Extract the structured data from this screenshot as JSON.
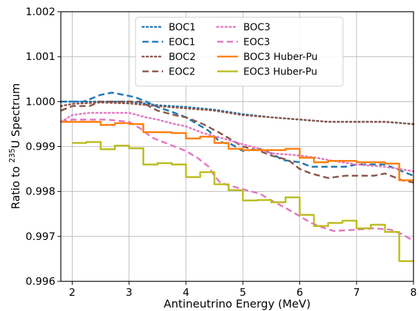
{
  "chart_data": {
    "type": "line",
    "title": "",
    "xlabel": "Antineutrino Energy (MeV)",
    "ylabel_parts": {
      "pre": "Ratio to ",
      "sup": "235",
      "post": "U Spectrum"
    },
    "xlim": [
      1.8,
      8.0
    ],
    "ylim": [
      0.996,
      1.002
    ],
    "xticks": [
      2,
      3,
      4,
      5,
      6,
      7,
      8
    ],
    "yticks": [
      0.996,
      0.997,
      0.998,
      0.999,
      1.0,
      1.001,
      1.002
    ],
    "ytick_labels": [
      "0.996",
      "0.997",
      "0.998",
      "0.999",
      "1.000",
      "1.001",
      "1.002"
    ],
    "grid": true,
    "legend": {
      "placement": "upper center",
      "columns": 2
    },
    "series": [
      {
        "name": "BOC1",
        "color": "#1f77b4",
        "style": "dotted",
        "x": [
          1.8,
          2.0,
          2.5,
          3.0,
          3.5,
          4.0,
          4.5,
          5.0,
          5.5,
          6.0,
          6.5,
          7.0,
          7.5,
          8.0
        ],
        "y": [
          1.0,
          1.0,
          1.0,
          1.0,
          0.99992,
          0.99988,
          0.99982,
          0.99972,
          0.99965,
          0.9996,
          0.99955,
          0.99955,
          0.99955,
          0.9995
        ]
      },
      {
        "name": "EOC1",
        "color": "#1f77b4",
        "style": "dashed",
        "x": [
          1.8,
          2.2,
          2.5,
          2.7,
          2.9,
          3.1,
          3.3,
          3.5,
          3.8,
          4.0,
          4.2,
          4.4,
          4.6,
          4.8,
          5.0,
          5.3,
          5.5,
          5.7,
          6.0,
          6.2,
          6.5,
          6.8,
          7.0,
          7.5,
          7.8,
          8.0
        ],
        "y": [
          1.0,
          1.0,
          1.00015,
          1.0002,
          1.00015,
          1.0001,
          1.0,
          0.99988,
          0.99975,
          0.99965,
          0.9995,
          0.99935,
          0.9991,
          0.99905,
          0.9989,
          0.99895,
          0.99885,
          0.9987,
          0.99865,
          0.99855,
          0.99855,
          0.99855,
          0.9986,
          0.9986,
          0.99845,
          0.99835
        ]
      },
      {
        "name": "BOC2",
        "color": "#8c564b",
        "style": "dotted",
        "x": [
          1.8,
          2.0,
          2.5,
          3.0,
          3.5,
          4.0,
          4.5,
          5.0,
          5.5,
          6.0,
          6.5,
          7.0,
          7.5,
          8.0
        ],
        "y": [
          0.9999,
          0.99995,
          0.99998,
          0.99996,
          0.9999,
          0.99985,
          0.9998,
          0.9997,
          0.99965,
          0.9996,
          0.99955,
          0.99955,
          0.99955,
          0.9995
        ]
      },
      {
        "name": "EOC2",
        "color": "#8c564b",
        "style": "dashed",
        "x": [
          1.8,
          2.0,
          2.3,
          2.5,
          3.0,
          3.2,
          3.5,
          3.8,
          4.0,
          4.3,
          4.6,
          4.8,
          5.0,
          5.3,
          5.5,
          5.8,
          6.0,
          6.2,
          6.5,
          6.8,
          7.0,
          7.3,
          7.5,
          7.8,
          8.0
        ],
        "y": [
          0.9998,
          0.9999,
          0.9999,
          1.0,
          1.0,
          1.0,
          0.9998,
          0.9997,
          0.99965,
          0.9995,
          0.9993,
          0.99915,
          0.999,
          0.9989,
          0.9988,
          0.9987,
          0.9985,
          0.9984,
          0.9983,
          0.99835,
          0.99835,
          0.99835,
          0.9984,
          0.99825,
          0.9982
        ]
      },
      {
        "name": "BOC3",
        "color": "#e377c2",
        "style": "dotted",
        "x": [
          1.8,
          2.0,
          2.3,
          2.5,
          3.0,
          3.3,
          3.5,
          3.8,
          4.0,
          4.3,
          4.6,
          5.0,
          5.3,
          5.5,
          6.0,
          6.3,
          6.5,
          7.0,
          7.5,
          8.0
        ],
        "y": [
          0.99955,
          0.9997,
          0.99975,
          0.99975,
          0.99975,
          0.99965,
          0.9996,
          0.9995,
          0.99945,
          0.9993,
          0.9992,
          0.99905,
          0.99895,
          0.99885,
          0.9988,
          0.99875,
          0.9987,
          0.9986,
          0.99855,
          0.99845
        ]
      },
      {
        "name": "EOC3",
        "color": "#e377c2",
        "style": "dashed",
        "x": [
          1.8,
          2.0,
          2.3,
          2.6,
          3.0,
          3.2,
          3.4,
          3.6,
          3.8,
          4.0,
          4.2,
          4.4,
          4.5,
          4.6,
          4.8,
          5.0,
          5.3,
          5.5,
          5.8,
          6.0,
          6.2,
          6.4,
          6.6,
          7.0,
          7.3,
          7.6,
          7.8,
          8.0
        ],
        "y": [
          0.99955,
          0.9996,
          0.9996,
          0.9996,
          0.99955,
          0.9994,
          0.9992,
          0.9991,
          0.999,
          0.9989,
          0.99875,
          0.99855,
          0.99835,
          0.9982,
          0.99812,
          0.99805,
          0.99795,
          0.9978,
          0.9976,
          0.99745,
          0.9973,
          0.9972,
          0.99712,
          0.99715,
          0.99718,
          0.99715,
          0.99705,
          0.9969
        ]
      },
      {
        "name": "BOC3 Huber-Pu",
        "color": "#ff7f0e",
        "style": "steps",
        "x": [
          1.8,
          2.0,
          2.5,
          2.75,
          3.0,
          3.25,
          3.5,
          3.75,
          4.0,
          4.25,
          4.5,
          4.75,
          5.0,
          5.25,
          5.5,
          5.75,
          6.0,
          6.25,
          6.5,
          6.75,
          7.0,
          7.25,
          7.5,
          7.75,
          8.0
        ],
        "y": [
          0.99955,
          0.99955,
          0.99948,
          0.99952,
          0.9995,
          0.99932,
          0.99932,
          0.9993,
          0.99918,
          0.99922,
          0.99908,
          0.99895,
          0.99892,
          0.99892,
          0.99892,
          0.99895,
          0.99875,
          0.99865,
          0.99868,
          0.99868,
          0.99865,
          0.99865,
          0.99862,
          0.99825,
          0.99825
        ]
      },
      {
        "name": "EOC3 Huber-Pu",
        "color": "#bcbd22",
        "style": "steps",
        "x": [
          2.0,
          2.25,
          2.5,
          2.75,
          3.0,
          3.25,
          3.5,
          3.75,
          4.0,
          4.25,
          4.5,
          4.75,
          5.0,
          5.25,
          5.5,
          5.75,
          6.0,
          6.25,
          6.5,
          6.75,
          7.0,
          7.25,
          7.5,
          7.75,
          8.0
        ],
        "y": [
          0.99908,
          0.9991,
          0.99894,
          0.99902,
          0.99896,
          0.9986,
          0.99863,
          0.9986,
          0.99832,
          0.99843,
          0.99816,
          0.99803,
          0.9978,
          0.99781,
          0.99776,
          0.99787,
          0.99748,
          0.99723,
          0.9973,
          0.99735,
          0.99718,
          0.99726,
          0.9971,
          0.99645,
          0.99645
        ]
      }
    ]
  }
}
